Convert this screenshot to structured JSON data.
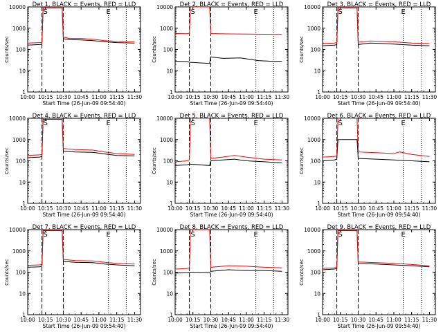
{
  "common": {
    "ylabel": "Counts/sec",
    "xlabel": "Start Time (26-Jun-09 09:54:40)",
    "yscale": "log",
    "ylim": [
      1,
      10000
    ],
    "xlim": [
      "10:00",
      "11:35"
    ],
    "xticks": [
      "10:00",
      "10:15",
      "10:30",
      "10:45",
      "11:00",
      "11:15",
      "11:30"
    ],
    "yticks": [
      "1",
      "10",
      "100",
      "1000",
      "10000"
    ],
    "marker_S_label": "S",
    "marker_E_label": "E",
    "series_colors": {
      "events": "#000000",
      "lld": "#ff0000"
    }
  },
  "chart_data": [
    {
      "type": "line",
      "title": "Det 1, BLACK = Events, RED = LLD",
      "markers": {
        "S": "10:15",
        "E": "11:08",
        "dashed": [
          "10:12",
          "10:30"
        ],
        "dotted": [
          "11:08",
          "11:23"
        ]
      },
      "series": [
        {
          "key": "events",
          "x": [
            "10:00",
            "10:10",
            "10:12",
            "10:13",
            "10:29",
            "10:30",
            "10:35",
            "10:45",
            "10:55",
            "11:05",
            "11:15",
            "11:30"
          ],
          "values": [
            160,
            170,
            175,
            9000,
            9000,
            320,
            290,
            280,
            260,
            230,
            210,
            200
          ]
        },
        {
          "key": "lld",
          "x": [
            "10:00",
            "10:10",
            "10:12",
            "10:13",
            "10:29",
            "10:30",
            "10:35",
            "10:45",
            "10:55",
            "11:05",
            "11:15",
            "11:30"
          ],
          "values": [
            200,
            210,
            220,
            10000,
            10000,
            380,
            330,
            330,
            300,
            260,
            240,
            230
          ]
        }
      ]
    },
    {
      "type": "line",
      "title": "Det 2, BLACK = Events, RED = LLD",
      "markers": {
        "S": "10:15",
        "E": "11:08",
        "dashed": [
          "10:12",
          "10:30"
        ],
        "dotted": [
          "11:08",
          "11:23"
        ]
      },
      "series": [
        {
          "key": "events",
          "x": [
            "10:00",
            "10:10",
            "10:12",
            "10:29",
            "10:30",
            "10:40",
            "10:55",
            "11:10",
            "11:20",
            "11:30"
          ],
          "values": [
            28,
            27,
            25,
            22,
            45,
            38,
            40,
            30,
            28,
            28
          ]
        },
        {
          "key": "lld",
          "x": [
            "10:00",
            "10:10",
            "10:12",
            "10:13",
            "10:29",
            "10:30",
            "10:45",
            "11:00",
            "11:15",
            "11:30"
          ],
          "values": [
            560,
            550,
            580,
            10000,
            10000,
            560,
            540,
            530,
            520,
            510
          ]
        }
      ]
    },
    {
      "type": "line",
      "title": "Det 3, BLACK = Events, RED = LLD",
      "markers": {
        "S": "10:15",
        "E": "11:08",
        "dashed": [
          "10:12",
          "10:30"
        ],
        "dotted": [
          "11:08",
          "11:23"
        ]
      },
      "series": [
        {
          "key": "events",
          "x": [
            "10:00",
            "10:10",
            "10:12",
            "10:13",
            "10:29",
            "10:30",
            "10:40",
            "10:50",
            "11:00",
            "11:15",
            "11:30"
          ],
          "values": [
            150,
            160,
            170,
            9000,
            9000,
            170,
            200,
            190,
            180,
            160,
            150
          ]
        },
        {
          "key": "lld",
          "x": [
            "10:00",
            "10:10",
            "10:12",
            "10:13",
            "10:29",
            "10:30",
            "10:40",
            "10:50",
            "11:00",
            "11:15",
            "11:30"
          ],
          "values": [
            190,
            200,
            210,
            10000,
            10000,
            220,
            250,
            240,
            230,
            200,
            190
          ]
        }
      ]
    },
    {
      "type": "line",
      "title": "Det 4, BLACK = Events, RED = LLD",
      "markers": {
        "S": "10:15",
        "E": "11:08",
        "dashed": [
          "10:12",
          "10:30"
        ],
        "dotted": [
          "11:08",
          "11:23"
        ]
      },
      "series": [
        {
          "key": "events",
          "x": [
            "10:00",
            "10:10",
            "10:12",
            "10:13",
            "10:29",
            "10:30",
            "10:40",
            "10:55",
            "11:05",
            "11:15",
            "11:30"
          ],
          "values": [
            140,
            150,
            160,
            9000,
            9000,
            290,
            260,
            250,
            210,
            180,
            170
          ]
        },
        {
          "key": "lld",
          "x": [
            "10:00",
            "10:10",
            "10:12",
            "10:13",
            "10:29",
            "10:30",
            "10:40",
            "10:55",
            "11:05",
            "11:15",
            "11:30"
          ],
          "values": [
            180,
            190,
            200,
            10000,
            10000,
            380,
            340,
            320,
            260,
            220,
            200
          ]
        }
      ]
    },
    {
      "type": "line",
      "title": "Det 5, BLACK = Events, RED = LLD",
      "markers": {
        "S": "10:15",
        "E": "11:08",
        "dashed": [
          "10:12",
          "10:30"
        ],
        "dotted": [
          "11:08",
          "11:23"
        ]
      },
      "series": [
        {
          "key": "events",
          "x": [
            "10:00",
            "10:10",
            "10:12",
            "10:29",
            "10:30",
            "10:40",
            "10:50",
            "11:00",
            "11:15",
            "11:30"
          ],
          "values": [
            60,
            65,
            70,
            60,
            100,
            110,
            120,
            100,
            90,
            80
          ]
        },
        {
          "key": "lld",
          "x": [
            "10:00",
            "10:10",
            "10:12",
            "10:13",
            "10:29",
            "10:30",
            "10:40",
            "10:50",
            "11:00",
            "11:15",
            "11:30"
          ],
          "values": [
            90,
            100,
            110,
            10000,
            10000,
            130,
            150,
            180,
            150,
            120,
            110
          ]
        }
      ]
    },
    {
      "type": "line",
      "title": "Det 6, BLACK = Events, RED = LLD",
      "markers": {
        "S": "10:15",
        "E": "11:08",
        "dashed": [
          "10:12",
          "10:30"
        ],
        "dotted": [
          "11:08",
          "11:23"
        ]
      },
      "series": [
        {
          "key": "events",
          "x": [
            "10:00",
            "10:10",
            "10:12",
            "10:13",
            "10:29",
            "10:30",
            "10:45",
            "11:00",
            "11:15",
            "11:30"
          ],
          "values": [
            100,
            110,
            120,
            1000,
            1000,
            130,
            120,
            110,
            100,
            90
          ]
        },
        {
          "key": "lld",
          "x": [
            "10:00",
            "10:10",
            "10:12",
            "10:13",
            "10:29",
            "10:30",
            "10:45",
            "11:00",
            "11:05",
            "11:15",
            "11:30"
          ],
          "values": [
            150,
            160,
            170,
            10000,
            10000,
            260,
            240,
            220,
            260,
            200,
            160
          ]
        }
      ]
    },
    {
      "type": "line",
      "title": "Det 7, BLACK = Events, RED = LLD",
      "markers": {
        "S": "10:15",
        "E": "11:08",
        "dashed": [
          "10:12",
          "10:30"
        ],
        "dotted": [
          "11:08",
          "11:23"
        ]
      },
      "series": [
        {
          "key": "events",
          "x": [
            "10:00",
            "10:10",
            "10:12",
            "10:13",
            "10:29",
            "10:30",
            "10:40",
            "10:55",
            "11:05",
            "11:15",
            "11:30"
          ],
          "values": [
            170,
            180,
            190,
            9000,
            9000,
            320,
            290,
            280,
            240,
            220,
            200
          ]
        },
        {
          "key": "lld",
          "x": [
            "10:00",
            "10:10",
            "10:12",
            "10:13",
            "10:29",
            "10:30",
            "10:40",
            "10:55",
            "11:05",
            "11:15",
            "11:30"
          ],
          "values": [
            210,
            220,
            230,
            10000,
            10000,
            400,
            350,
            340,
            290,
            260,
            240
          ]
        }
      ]
    },
    {
      "type": "line",
      "title": "Det 8, BLACK = Events, RED = LLD",
      "markers": {
        "S": "10:15",
        "E": "11:08",
        "dashed": [
          "10:12",
          "10:30"
        ],
        "dotted": [
          "11:08",
          "11:23"
        ]
      },
      "series": [
        {
          "key": "events",
          "x": [
            "10:00",
            "10:10",
            "10:12",
            "10:29",
            "10:30",
            "10:45",
            "11:00",
            "11:15",
            "11:30"
          ],
          "values": [
            90,
            95,
            100,
            95,
            110,
            130,
            120,
            120,
            110
          ]
        },
        {
          "key": "lld",
          "x": [
            "10:00",
            "10:10",
            "10:12",
            "10:13",
            "10:29",
            "10:30",
            "10:45",
            "11:00",
            "11:15",
            "11:30"
          ],
          "values": [
            140,
            150,
            160,
            10000,
            10000,
            170,
            200,
            190,
            170,
            160
          ]
        }
      ]
    },
    {
      "type": "line",
      "title": "Det 9, BLACK = Events, RED = LLD",
      "markers": {
        "S": "10:15",
        "E": "11:08",
        "dashed": [
          "10:12",
          "10:30"
        ],
        "dotted": [
          "11:08",
          "11:23"
        ]
      },
      "series": [
        {
          "key": "events",
          "x": [
            "10:00",
            "10:10",
            "10:12",
            "10:13",
            "10:29",
            "10:30",
            "10:45",
            "11:00",
            "11:15",
            "11:30"
          ],
          "values": [
            130,
            140,
            150,
            9000,
            9000,
            260,
            240,
            220,
            200,
            180
          ]
        },
        {
          "key": "lld",
          "x": [
            "10:00",
            "10:10",
            "10:12",
            "10:13",
            "10:29",
            "10:30",
            "10:45",
            "11:00",
            "11:15",
            "11:30"
          ],
          "values": [
            150,
            160,
            170,
            10000,
            10000,
            300,
            280,
            260,
            230,
            200
          ]
        }
      ]
    }
  ]
}
